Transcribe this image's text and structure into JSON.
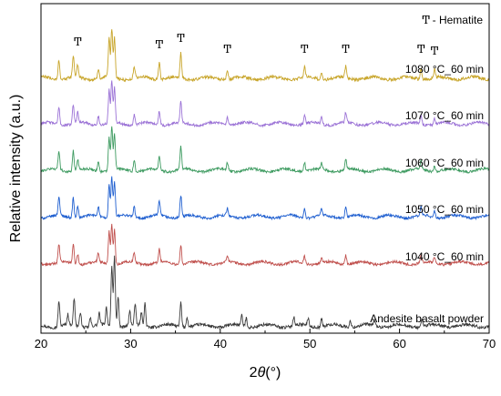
{
  "chart_data": {
    "type": "line",
    "title": "",
    "xlabel": "2θ(°)",
    "xlabel_parts": {
      "prefix": "2",
      "var": "θ",
      "suffix": "(°)"
    },
    "ylabel": "Relative intensity (a.u.)",
    "xlim": [
      20,
      70
    ],
    "x_ticks": [
      "20",
      "30",
      "40",
      "50",
      "60",
      "70"
    ],
    "y_ticks": false,
    "grid": false,
    "legend": {
      "symbol": "Ͳ",
      "text": "- Hematite",
      "placement": "top-right"
    },
    "hematite_peaks": [
      24.1,
      33.2,
      35.6,
      40.8,
      49.4,
      54.0,
      62.4,
      63.9
    ],
    "series": [
      {
        "name": "Andesite basalt powder",
        "color": "#3a3a3a",
        "peaks": [
          [
            22.0,
            1.0
          ],
          [
            23.0,
            0.4
          ],
          [
            23.7,
            1.05
          ],
          [
            24.4,
            0.6
          ],
          [
            25.5,
            0.35
          ],
          [
            26.5,
            0.45
          ],
          [
            27.3,
            0.7
          ],
          [
            27.9,
            2.3
          ],
          [
            28.2,
            2.8
          ],
          [
            28.6,
            1.2
          ],
          [
            29.9,
            0.55
          ],
          [
            30.5,
            0.8
          ],
          [
            31.2,
            0.5
          ],
          [
            31.6,
            0.9
          ],
          [
            35.6,
            0.95
          ],
          [
            36.3,
            0.4
          ],
          [
            42.4,
            0.4
          ],
          [
            42.9,
            0.35
          ],
          [
            48.2,
            0.35
          ],
          [
            49.8,
            0.3
          ],
          [
            51.3,
            0.3
          ],
          [
            54.5,
            0.25
          ],
          [
            57.2,
            0.2
          ],
          [
            62.5,
            0.3
          ]
        ],
        "noise": 0.12
      },
      {
        "name": "1040 °C_60 min",
        "color": "#c0504d",
        "peaks": [
          [
            22.0,
            0.7
          ],
          [
            23.6,
            0.75
          ],
          [
            24.1,
            0.4
          ],
          [
            26.4,
            0.35
          ],
          [
            27.6,
            1.3
          ],
          [
            27.9,
            1.55
          ],
          [
            28.2,
            1.4
          ],
          [
            30.4,
            0.4
          ],
          [
            33.2,
            0.5
          ],
          [
            35.6,
            0.75
          ],
          [
            40.8,
            0.25
          ],
          [
            49.4,
            0.3
          ],
          [
            51.3,
            0.2
          ],
          [
            54.0,
            0.35
          ],
          [
            62.4,
            0.3
          ],
          [
            63.9,
            0.2
          ]
        ],
        "noise": 0.1
      },
      {
        "name": "1050 °C_60 min",
        "color": "#1f5fd0",
        "peaks": [
          [
            22.0,
            0.75
          ],
          [
            23.6,
            0.8
          ],
          [
            24.1,
            0.45
          ],
          [
            26.4,
            0.4
          ],
          [
            27.6,
            1.3
          ],
          [
            27.9,
            1.6
          ],
          [
            28.2,
            1.4
          ],
          [
            30.4,
            0.4
          ],
          [
            33.2,
            0.55
          ],
          [
            35.6,
            0.85
          ],
          [
            40.8,
            0.3
          ],
          [
            49.4,
            0.35
          ],
          [
            51.3,
            0.25
          ],
          [
            54.0,
            0.4
          ],
          [
            62.4,
            0.35
          ],
          [
            63.9,
            0.25
          ]
        ],
        "noise": 0.1
      },
      {
        "name": "1060 °C_60 min",
        "color": "#3c9a5f",
        "peaks": [
          [
            22.0,
            0.75
          ],
          [
            23.6,
            0.8
          ],
          [
            24.1,
            0.45
          ],
          [
            26.4,
            0.4
          ],
          [
            27.6,
            1.3
          ],
          [
            27.9,
            1.7
          ],
          [
            28.2,
            1.4
          ],
          [
            30.4,
            0.45
          ],
          [
            33.2,
            0.55
          ],
          [
            35.6,
            0.9
          ],
          [
            40.8,
            0.3
          ],
          [
            49.4,
            0.35
          ],
          [
            51.3,
            0.25
          ],
          [
            54.0,
            0.4
          ],
          [
            62.4,
            0.35
          ],
          [
            63.9,
            0.25
          ]
        ],
        "noise": 0.1
      },
      {
        "name": "1070 °C_60 min",
        "color": "#9b72d6",
        "peaks": [
          [
            22.0,
            0.7
          ],
          [
            23.6,
            0.75
          ],
          [
            24.1,
            0.45
          ],
          [
            26.4,
            0.35
          ],
          [
            27.6,
            1.3
          ],
          [
            27.9,
            1.65
          ],
          [
            28.2,
            1.4
          ],
          [
            30.4,
            0.4
          ],
          [
            33.2,
            0.55
          ],
          [
            35.6,
            0.85
          ],
          [
            40.8,
            0.3
          ],
          [
            49.4,
            0.35
          ],
          [
            51.3,
            0.25
          ],
          [
            54.0,
            0.4
          ],
          [
            62.4,
            0.35
          ],
          [
            63.9,
            0.25
          ]
        ],
        "noise": 0.1
      },
      {
        "name": "1080 °C_60 min",
        "color": "#c8a52a",
        "peaks": [
          [
            22.0,
            0.8
          ],
          [
            23.6,
            0.85
          ],
          [
            24.1,
            0.5
          ],
          [
            26.4,
            0.4
          ],
          [
            27.6,
            1.5
          ],
          [
            27.9,
            1.9
          ],
          [
            28.2,
            1.6
          ],
          [
            30.4,
            0.45
          ],
          [
            33.2,
            0.65
          ],
          [
            35.6,
            0.95
          ],
          [
            40.8,
            0.35
          ],
          [
            49.4,
            0.4
          ],
          [
            51.3,
            0.3
          ],
          [
            54.0,
            0.45
          ],
          [
            62.4,
            0.4
          ],
          [
            63.9,
            0.3
          ]
        ],
        "noise": 0.12
      }
    ]
  }
}
